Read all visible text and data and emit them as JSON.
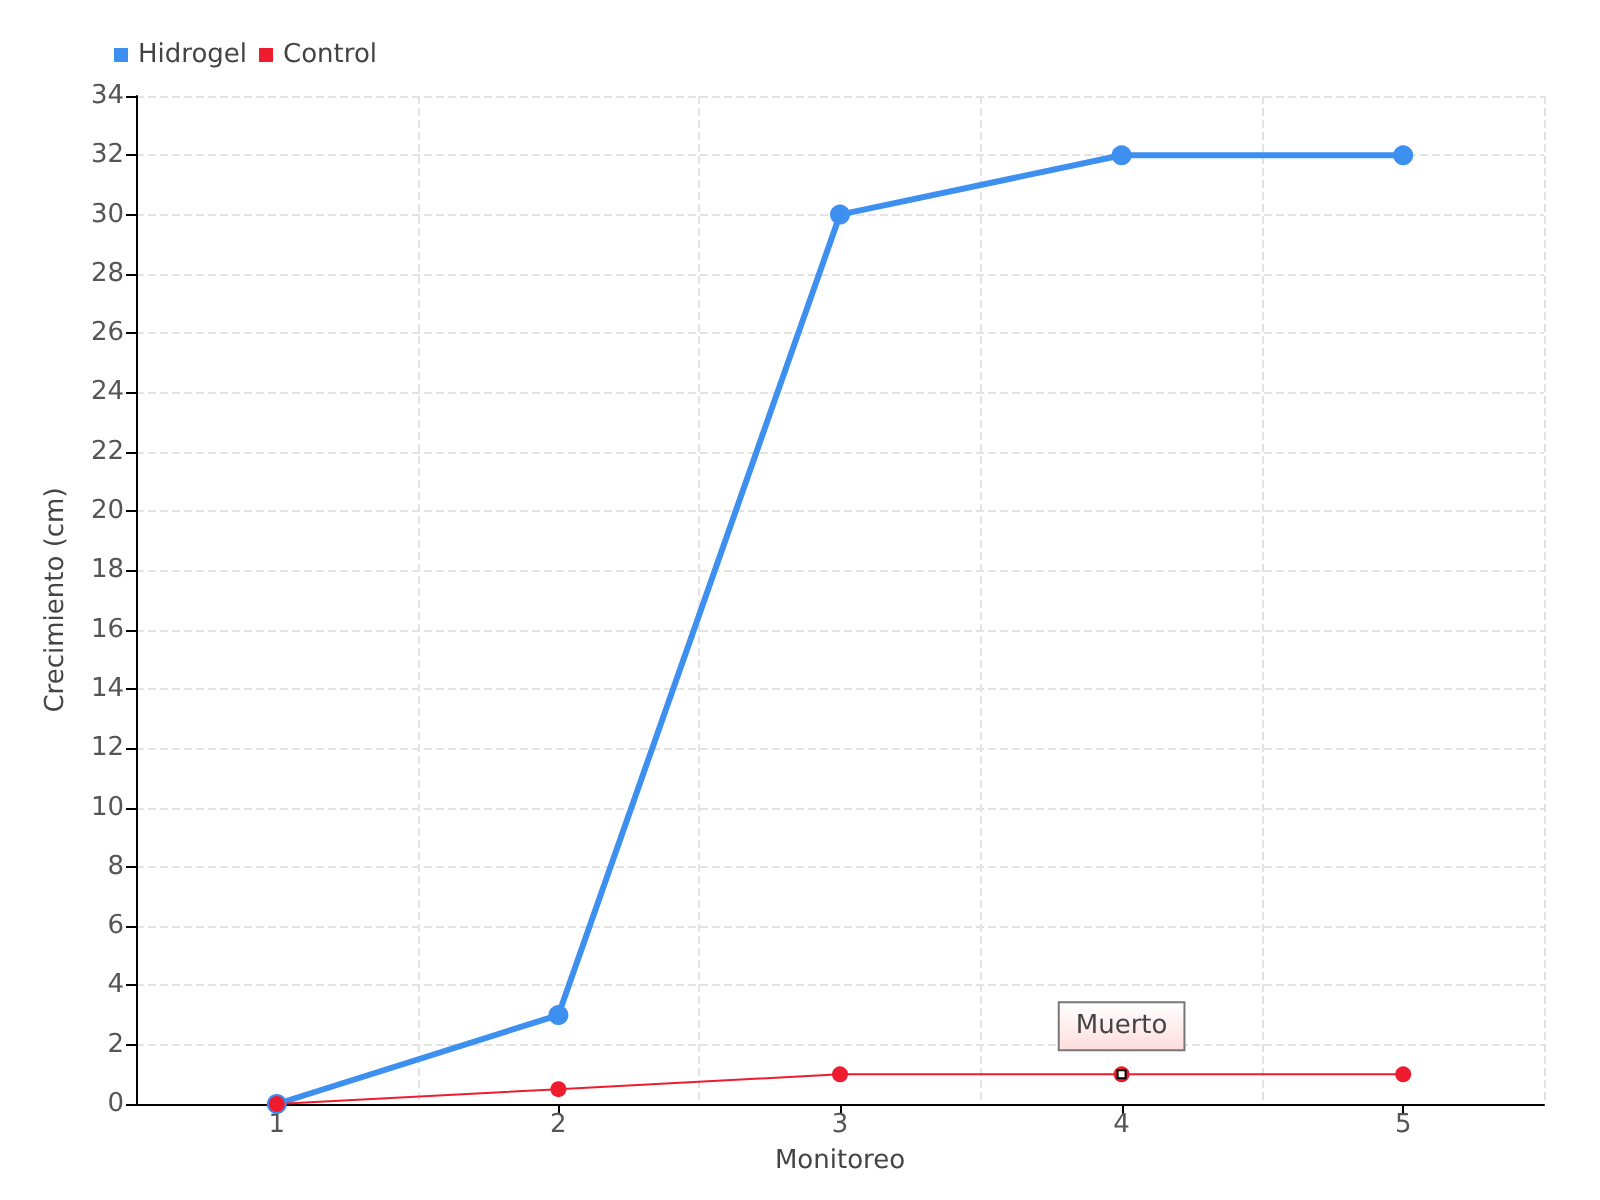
{
  "chart_data": {
    "type": "line",
    "xlabel": "Monitoreo",
    "ylabel": "Crecimiento (cm)",
    "categories": [
      "1",
      "2",
      "3",
      "4",
      "5"
    ],
    "series": [
      {
        "name": "Hidrogel",
        "color": "#3d8ff0",
        "values": [
          0,
          3,
          30,
          32,
          32
        ]
      },
      {
        "name": "Control",
        "color": "#ee1c2e",
        "values": [
          0,
          0.5,
          1,
          1,
          1
        ]
      }
    ],
    "ylim": [
      0,
      34
    ],
    "yticks": [
      0,
      2,
      4,
      6,
      8,
      10,
      12,
      14,
      16,
      18,
      20,
      22,
      24,
      26,
      28,
      30,
      32,
      34
    ],
    "annotations": [
      {
        "text": "Muerto",
        "x": "4",
        "y": 1
      }
    ],
    "grid": true,
    "legend": "top left",
    "marker": "circle",
    "line_style": "solid"
  }
}
